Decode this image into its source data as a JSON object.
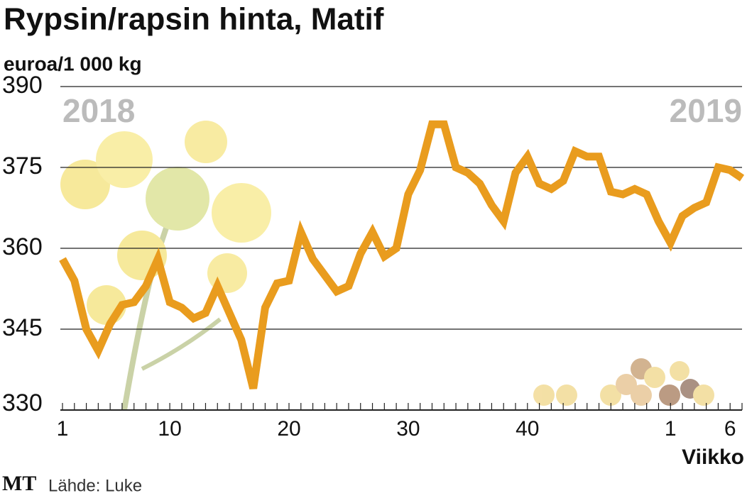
{
  "chart_data": {
    "type": "line",
    "title": "Rypsin/rapsin hinta, Matif",
    "subtitle": "euroa/1 000 kg",
    "annotations": [
      "2018",
      "2019"
    ],
    "x_label": "Viikko",
    "logo": "MT",
    "source": "Lähde: Luke",
    "categories": [
      "1",
      null,
      null,
      null,
      null,
      null,
      null,
      null,
      null,
      "10",
      null,
      null,
      null,
      null,
      null,
      null,
      null,
      null,
      null,
      "20",
      null,
      null,
      null,
      null,
      null,
      null,
      null,
      null,
      null,
      "30",
      null,
      null,
      null,
      null,
      null,
      null,
      null,
      null,
      null,
      "40",
      null,
      null,
      null,
      null,
      null,
      null,
      null,
      null,
      null,
      null,
      null,
      "1",
      null,
      null,
      null,
      null,
      "6",
      null
    ],
    "series": [
      {
        "name": "Rypsin/rapsin hinta",
        "color": "#e99c1e",
        "values": [
          358,
          354,
          345,
          341,
          346,
          349.5,
          350,
          353,
          358,
          350,
          349,
          347,
          348,
          353,
          348,
          343,
          334,
          349,
          353.5,
          354,
          363,
          358,
          355,
          352,
          353,
          359,
          363,
          358.5,
          360,
          370,
          374.5,
          383,
          383,
          375,
          374,
          372,
          368,
          365,
          374,
          377,
          372,
          371,
          372.5,
          378,
          377,
          377,
          370.5,
          370,
          371,
          370,
          365,
          361,
          366,
          367.5,
          368.5,
          375,
          374.5,
          373
        ]
      }
    ],
    "ylim": [
      330,
      390
    ],
    "yticks": [
      330,
      345,
      360,
      375,
      390
    ],
    "grid": true
  }
}
